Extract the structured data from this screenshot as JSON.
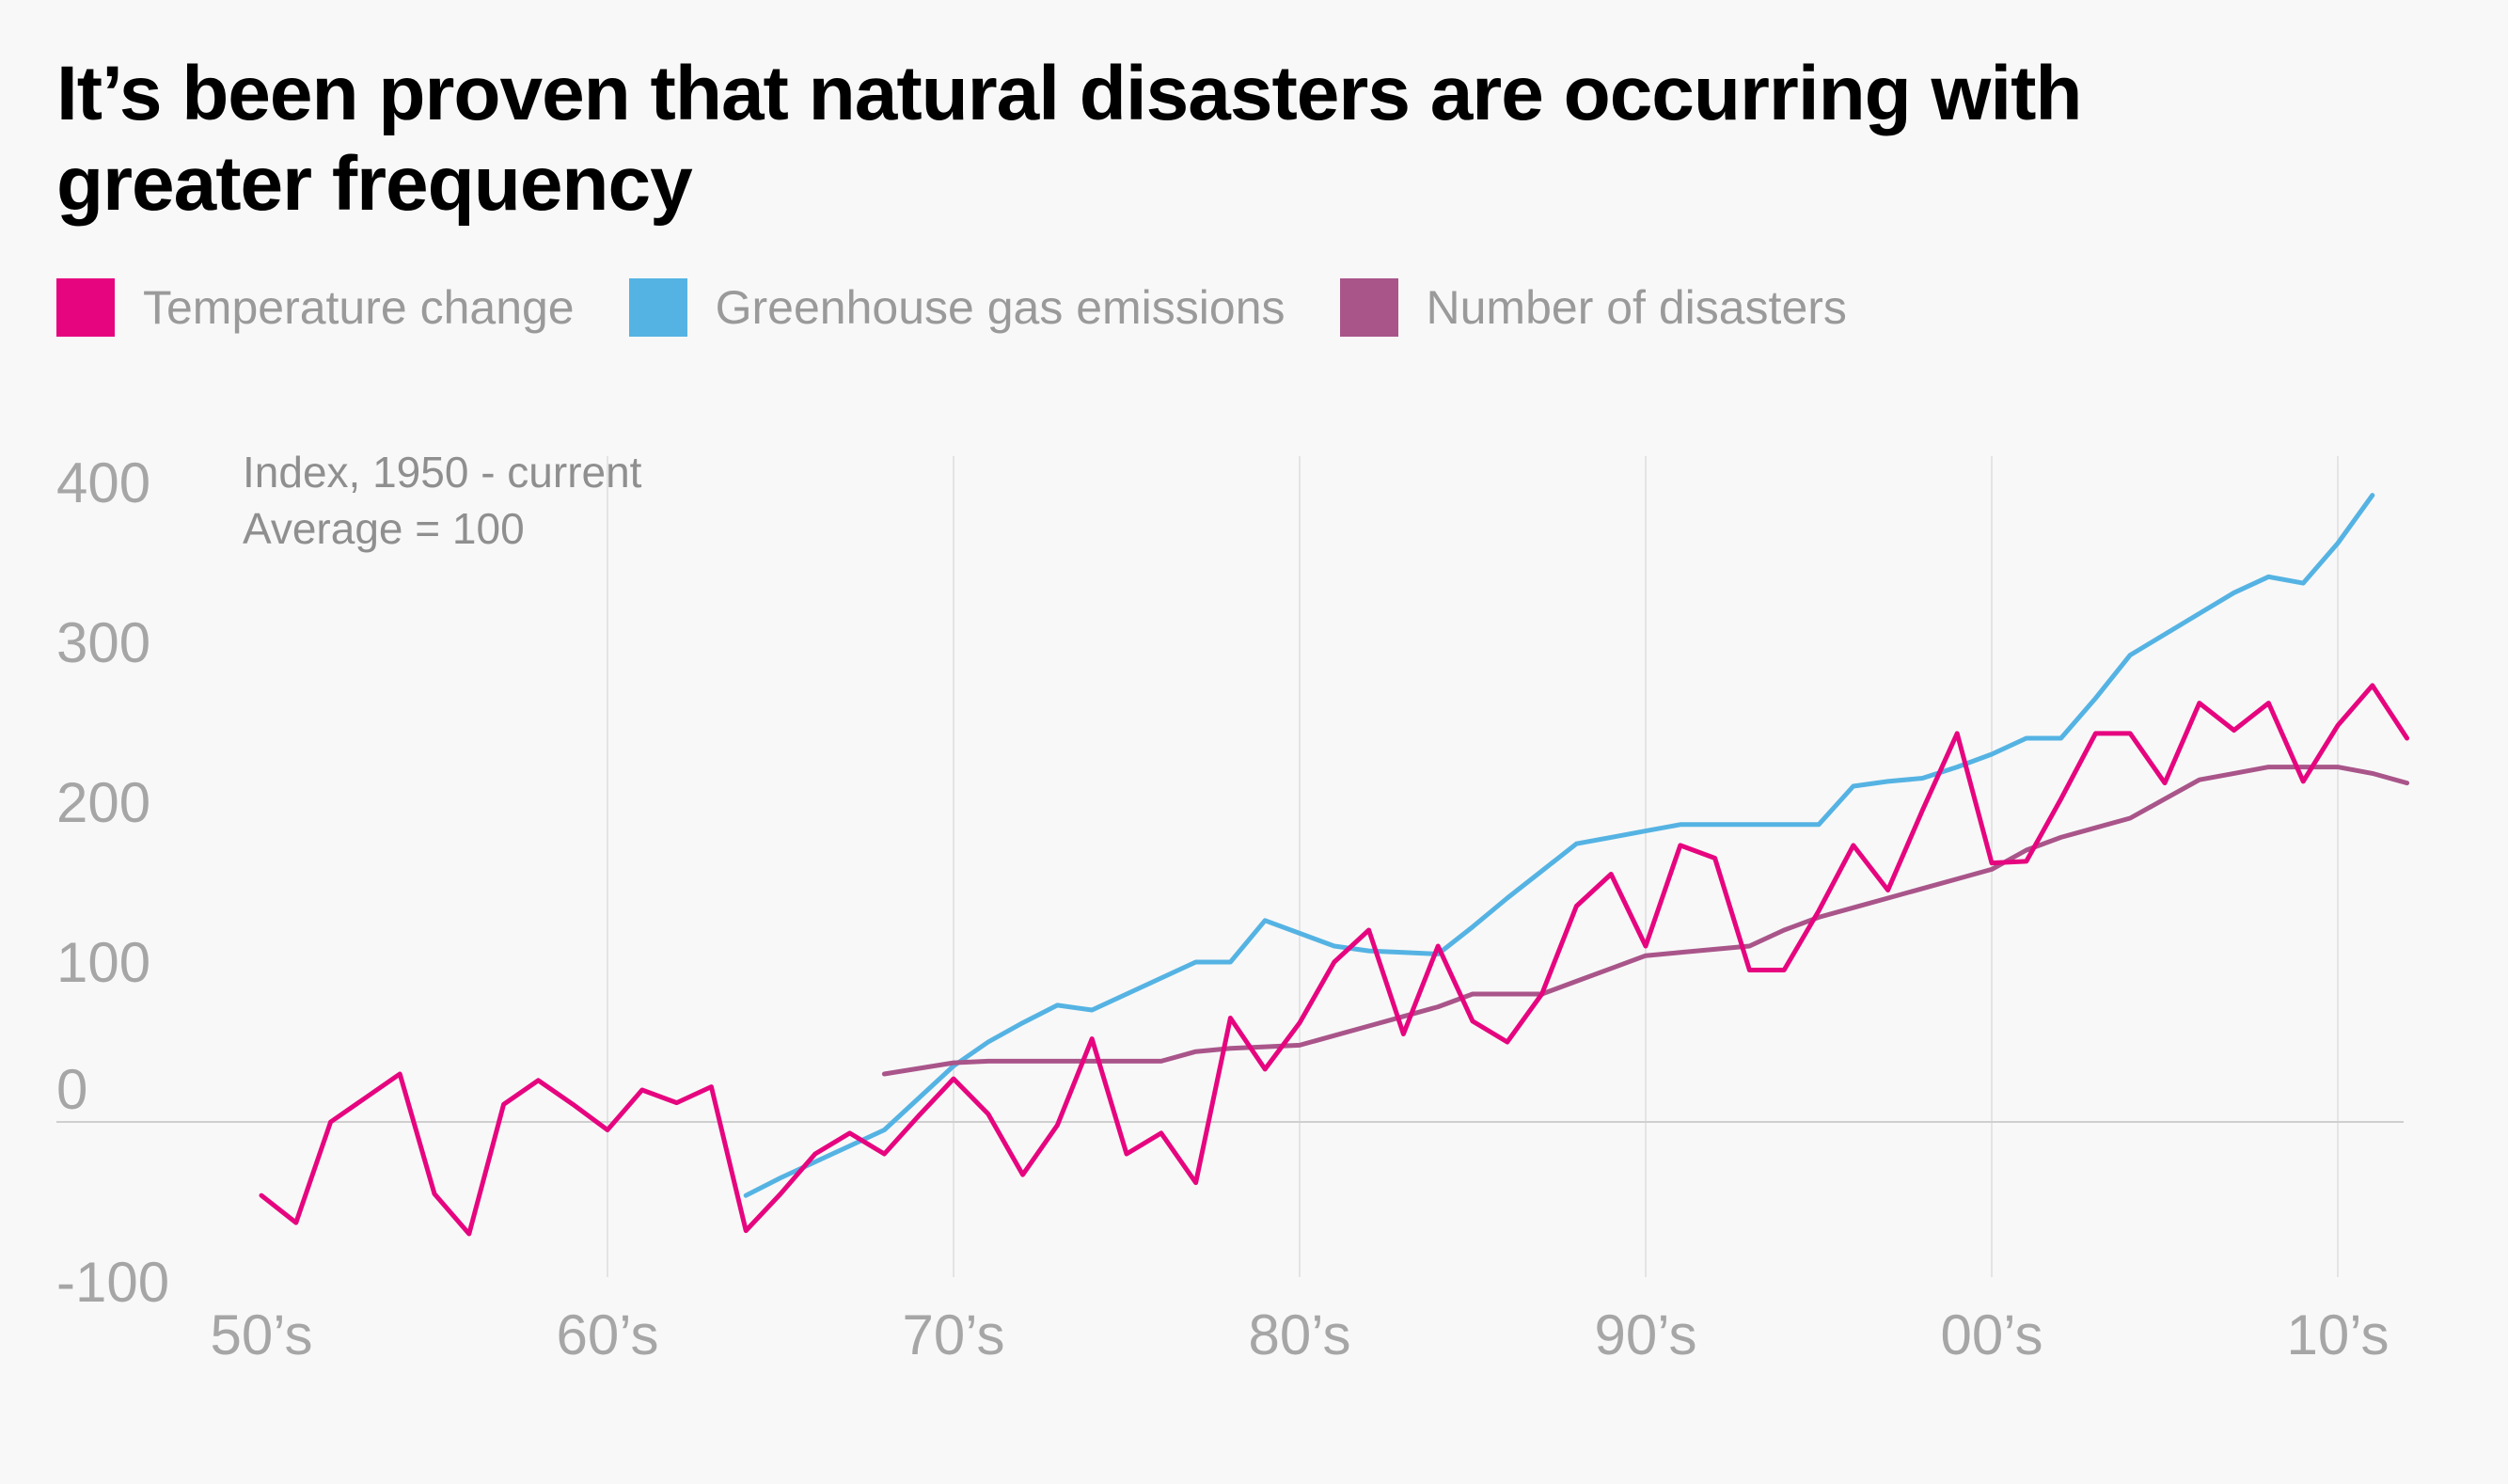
{
  "title": "It’s been proven that natural disasters are occurring with greater frequency",
  "legend": [
    {
      "label": "Temperature change",
      "color": "#e6057f"
    },
    {
      "label": "Greenhouse gas emissions",
      "color": "#55b3e3"
    },
    {
      "label": "Number of disasters",
      "color": "#a9558a"
    }
  ],
  "annotation": {
    "line1": "Index, 1950 - current",
    "line2": "Average = 100"
  },
  "chart_data": {
    "type": "line",
    "title": "It’s been proven that natural disasters are occurring with greater frequency",
    "xlabel": "",
    "ylabel": "",
    "xlim": [
      1950,
      2016
    ],
    "ylim": [
      -100,
      400
    ],
    "x_tick_values": [
      1950,
      1960,
      1970,
      1980,
      1990,
      2000,
      2010
    ],
    "x_tick_labels": [
      "50’s",
      "60’s",
      "70’s",
      "80’s",
      "90’s",
      "00’s",
      "10’s"
    ],
    "y_ticks": [
      -100,
      0,
      100,
      200,
      300,
      400
    ],
    "grid": "vertical",
    "legend_position": "top-left",
    "series": [
      {
        "name": "Temperature change",
        "color": "#e6057f",
        "x": [
          1950,
          1951,
          1952,
          1953,
          1954,
          1955,
          1956,
          1957,
          1958,
          1959,
          1960,
          1961,
          1962,
          1963,
          1964,
          1965,
          1966,
          1967,
          1968,
          1969,
          1970,
          1971,
          1972,
          1973,
          1974,
          1975,
          1976,
          1977,
          1978,
          1979,
          1980,
          1981,
          1982,
          1983,
          1984,
          1985,
          1986,
          1987,
          1988,
          1989,
          1990,
          1991,
          1992,
          1993,
          1994,
          1995,
          1996,
          1997,
          1998,
          1999,
          2000,
          2001,
          2002,
          2003,
          2004,
          2005,
          2006,
          2007,
          2008,
          2009,
          2010,
          2011,
          2012
        ],
        "values": [
          -46,
          -63,
          0,
          15,
          30,
          -45,
          -70,
          11,
          26,
          11,
          -5,
          20,
          12,
          22,
          -68,
          -45,
          -20,
          -7,
          -20,
          4,
          27,
          5,
          -33,
          -2,
          52,
          -20,
          -7,
          -38,
          65,
          33,
          62,
          100,
          120,
          55,
          110,
          63,
          50,
          80,
          135,
          155,
          110,
          173,
          165,
          95,
          95,
          132,
          173,
          145,
          195,
          243,
          162,
          163,
          202,
          243,
          243,
          212,
          262,
          245,
          262,
          213,
          248,
          273,
          240
        ]
      },
      {
        "name": "Greenhouse gas emissions",
        "color": "#55b3e3",
        "x": [
          1964,
          1965,
          1966,
          1967,
          1968,
          1969,
          1970,
          1971,
          1972,
          1973,
          1974,
          1975,
          1976,
          1977,
          1978,
          1979,
          1980,
          1981,
          1982,
          1983,
          1984,
          1985,
          1986,
          1987,
          1988,
          1989,
          1990,
          1991,
          1992,
          1993,
          1994,
          1995,
          1996,
          1997,
          1998,
          1999,
          2000,
          2001,
          2002,
          2003,
          2004,
          2005,
          2006,
          2007,
          2008,
          2009,
          2010,
          2011
        ],
        "values": [
          -46,
          -35,
          -25,
          -15,
          -5,
          15,
          35,
          50,
          62,
          73,
          70,
          80,
          90,
          100,
          100,
          126,
          118,
          110,
          107,
          106,
          105,
          122,
          140,
          157,
          174,
          178,
          182,
          186,
          186,
          186,
          186,
          186,
          210,
          213,
          215,
          222,
          230,
          240,
          240,
          265,
          292,
          305,
          318,
          331,
          341,
          337,
          362,
          392
        ]
      },
      {
        "name": "Number of disasters",
        "color": "#a9558a",
        "x": [
          1968,
          1970,
          1971,
          1972,
          1973,
          1974,
          1975,
          1976,
          1977,
          1978,
          1979,
          1980,
          1981,
          1982,
          1983,
          1984,
          1985,
          1986,
          1987,
          1988,
          1989,
          1990,
          1991,
          1992,
          1993,
          1994,
          1995,
          1996,
          1997,
          1998,
          1999,
          2000,
          2001,
          2002,
          2003,
          2004,
          2005,
          2006,
          2007,
          2008,
          2009,
          2010,
          2011,
          2012
        ],
        "values": [
          30,
          37,
          38,
          38,
          38,
          38,
          38,
          38,
          44,
          46,
          47,
          48,
          54,
          60,
          66,
          72,
          80,
          80,
          80,
          88,
          96,
          104,
          106,
          108,
          110,
          120,
          128,
          134,
          140,
          146,
          152,
          158,
          170,
          178,
          184,
          190,
          202,
          214,
          218,
          222,
          222,
          222,
          218,
          212
        ]
      }
    ]
  }
}
